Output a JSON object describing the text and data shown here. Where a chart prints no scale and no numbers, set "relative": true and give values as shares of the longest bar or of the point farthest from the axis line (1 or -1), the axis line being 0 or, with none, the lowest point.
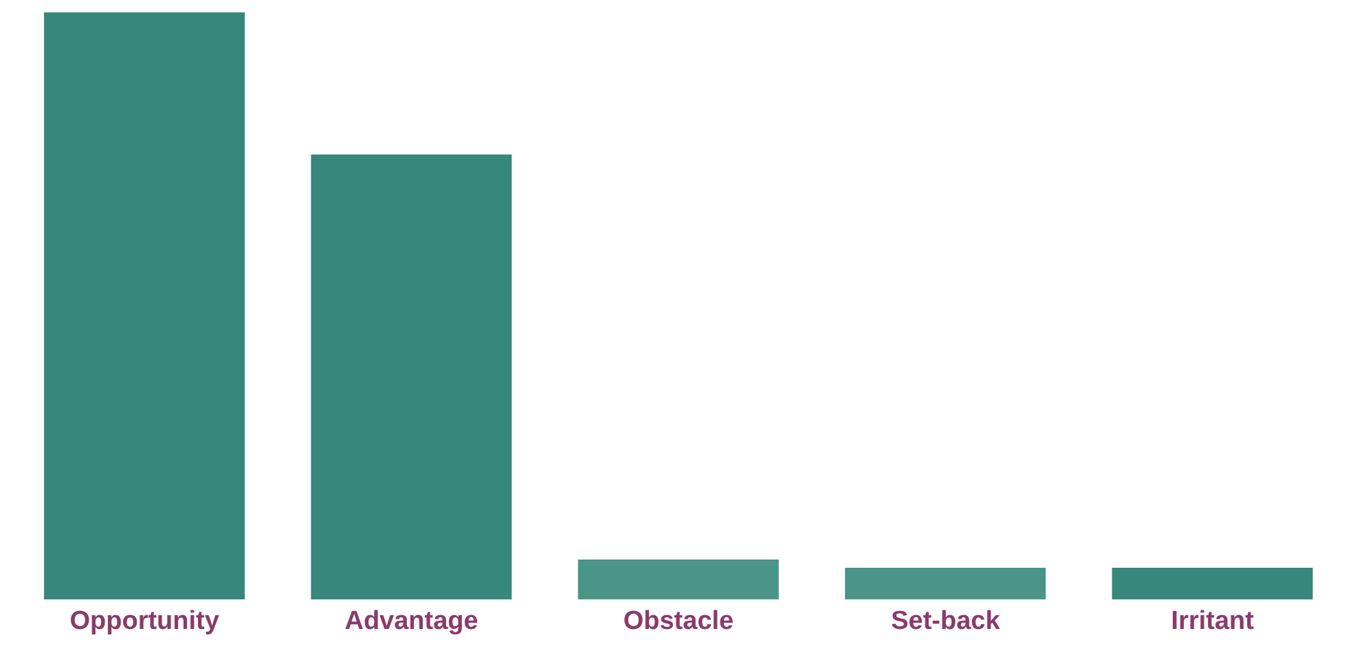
{
  "chart_data": {
    "type": "bar",
    "relative": true,
    "categories": [
      "Opportunity",
      "Advantage",
      "Obstacle",
      "Set-back",
      "Irritant"
    ],
    "values": [
      1,
      0.758,
      0.068,
      0.054,
      0.054
    ],
    "colors": [
      "#37877a",
      "#37877a",
      "#4a9488",
      "#4a9488",
      "#37877a"
    ],
    "grid": false,
    "legend": false
  }
}
